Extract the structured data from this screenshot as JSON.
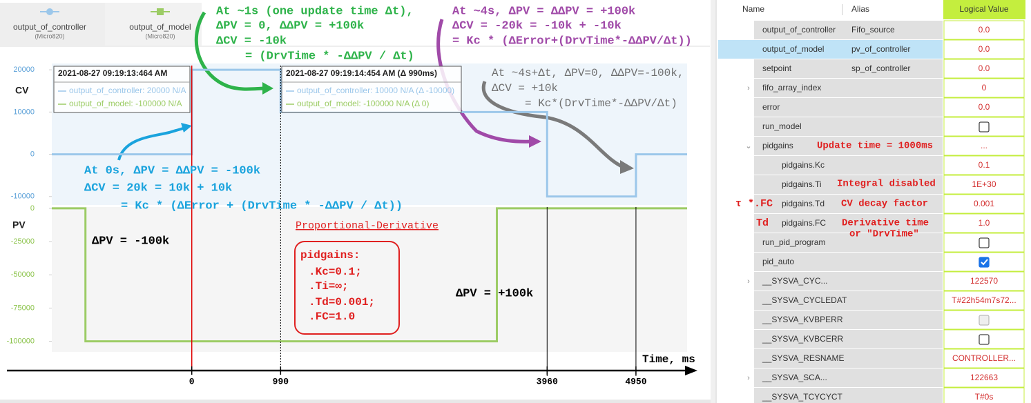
{
  "legend_sources": [
    "(Micro820)",
    "(Micro820)"
  ],
  "chart_data": [
    {
      "type": "line",
      "ylabel": "CV",
      "x": [
        -1560,
        0,
        0,
        990,
        990,
        3960,
        3960,
        4950,
        4950,
        5520
      ],
      "series": [
        {
          "name": "output_of_controller",
          "color": "#9cc7ea",
          "values": [
            0,
            0,
            20000,
            20000,
            10000,
            10000,
            -10000,
            -10000,
            0,
            0
          ]
        }
      ],
      "xlim": [
        -1560,
        5520
      ],
      "ylim": [
        -12000,
        21500
      ],
      "yticks": [
        20000,
        10000,
        0,
        -10000
      ]
    },
    {
      "type": "line",
      "ylabel": "PV",
      "xlabel": "Time, ms",
      "x": [
        -1560,
        -1185,
        -1185,
        3400,
        3400,
        5520
      ],
      "series": [
        {
          "name": "output_of_model",
          "color": "#9ccc65",
          "values": [
            0,
            0,
            -100000,
            -100000,
            0,
            0
          ]
        }
      ],
      "xlim": [
        -1560,
        5520
      ],
      "ylim": [
        -108000,
        1000
      ],
      "yticks": [
        0,
        -25000,
        -50000,
        -75000,
        -100000
      ],
      "xticks": [
        0,
        990,
        3960,
        4950
      ]
    }
  ],
  "tooltips": [
    {
      "time": "2021-08-27 09:19:13:464 AM",
      "lines": [
        "output_of_controller: 20000 N/A",
        "output_of_model: -100000 N/A"
      ]
    },
    {
      "time": "2021-08-27 09:19:14:454 AM (Δ 990ms)",
      "lines": [
        "output_of_controller: 10000 N/A (Δ -10000)",
        "output_of_model: -100000 N/A (Δ 0)"
      ]
    }
  ],
  "annotations": {
    "green": [
      "At ~1s (one update time Δt),",
      "ΔPV = 0, ΔΔPV = +100k",
      "ΔCV = -10k",
      "= (DrvTime * -ΔΔPV / Δt)"
    ],
    "purple": [
      "At ~4s, ΔPV = ΔΔPV = +100k",
      "ΔCV = -20k = -10k + -10k",
      "= Kc * (ΔError+(DrvTime*-ΔΔPV/Δt))"
    ],
    "gray": [
      "At ~4s+Δt, ΔPV=0, ΔΔPV=-100k,",
      "ΔCV = +10k",
      "= Kc*(DrvTime*-ΔΔPV/Δt)"
    ],
    "blue": [
      "At 0s, ΔPV = ΔΔPV = -100k",
      "ΔCV = 20k = 10k + 10k",
      "= Kc * (ΔError + (DrvTime * -ΔΔPV / Δt))"
    ],
    "pv_drop": "ΔPV = -100k",
    "pv_rise": "ΔPV = +100k",
    "mode": "Proportional-Derivative",
    "pidgains_box": [
      "pidgains:",
      ".Kc=0.1;",
      ".Ti=∞;",
      ".Td=0.001;",
      ".FC=1.0"
    ]
  },
  "table": {
    "headers": [
      "Name",
      "Alias",
      "Logical Value"
    ],
    "rows": [
      {
        "name": "output_of_controller",
        "alias": "Fifo_source",
        "value": "0.0"
      },
      {
        "name": "output_of_model",
        "alias": "pv_of_controller",
        "value": "0.0",
        "selected": true
      },
      {
        "name": "setpoint",
        "alias": "sp_of_controller",
        "value": "0.0"
      },
      {
        "name": "fifo_array_index",
        "value": "0",
        "expander": "collapsed"
      },
      {
        "name": "error",
        "value": "0.0"
      },
      {
        "name": "run_model",
        "checked": false
      },
      {
        "name": "pidgains",
        "value": "...",
        "expander": "expanded"
      },
      {
        "name": "pidgains.Kc",
        "value": "0.1",
        "level": 1
      },
      {
        "name": "pidgains.Ti",
        "value": "1E+30",
        "level": 1
      },
      {
        "name": "pidgains.Td",
        "value": "0.001",
        "level": 1
      },
      {
        "name": "pidgains.FC",
        "value": "1.0",
        "level": 1
      },
      {
        "name": "run_pid_program",
        "checked": false
      },
      {
        "name": "pid_auto",
        "checked": true
      },
      {
        "name": "__SYSVA_CYC...",
        "value": "122570",
        "expander": "collapsed"
      },
      {
        "name": "__SYSVA_CYCLEDAT",
        "value": "T#22h54m7s72..."
      },
      {
        "name": "__SYSVA_KVBPERR",
        "checked": false,
        "disabled": true
      },
      {
        "name": "__SYSVA_KVBCERR",
        "checked": false
      },
      {
        "name": "__SYSVA_RESNAME",
        "value": "CONTROLLER..."
      },
      {
        "name": "__SYSVA_SCA...",
        "value": "122663",
        "expander": "collapsed"
      },
      {
        "name": "__SYSVA_TCYCYCT",
        "value": "T#0s"
      }
    ],
    "notes": [
      "Update time = 1000ms",
      "Integral disabled",
      "τ *.FC",
      "CV decay factor",
      "Td",
      "Derivative time",
      "or \"DrvTime\""
    ]
  }
}
